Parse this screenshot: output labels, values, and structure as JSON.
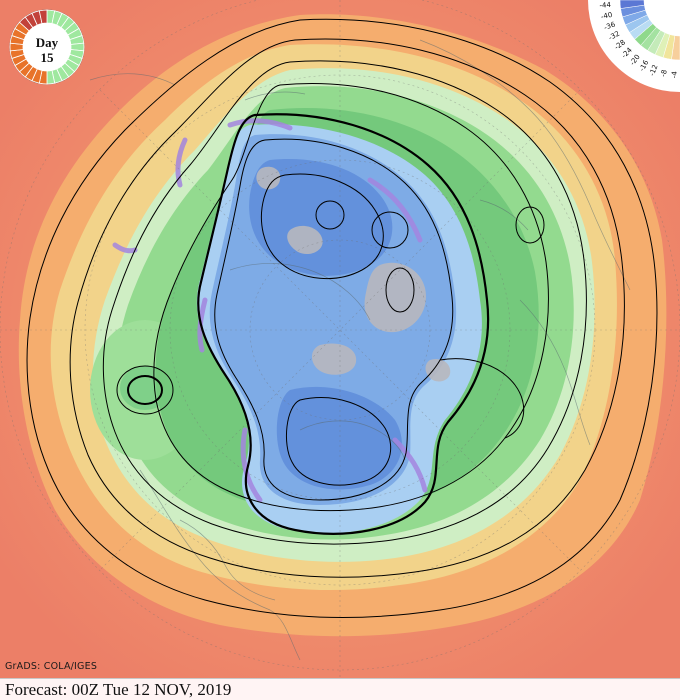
{
  "badge": {
    "label": "Day",
    "day": "15",
    "segments_total": 15,
    "segments_elapsed": 15,
    "color_elapsed": "#e8732a",
    "color_recent": "#c2423a",
    "color_future": "#9fe89f"
  },
  "scale": {
    "ticks": [
      "-4",
      "-8",
      "-12",
      "-16",
      "-20",
      "-24",
      "-28",
      "-32",
      "-36",
      "-40",
      "-44"
    ]
  },
  "credit": "GrADS: COLA/IGES",
  "footer": {
    "forecast": "Forecast: 00Z Tue 12 NOV, 2019"
  },
  "colors": {
    "warm_outer": "#f28c6e",
    "orange": "#f5b06a",
    "yellow": "#f3dc8a",
    "pale_green": "#cdeec0",
    "green": "#8fd98c",
    "mid_green": "#6cc777",
    "light_blue": "#9ec8f0",
    "blue": "#79a8e6",
    "deep_blue": "#5f8fd9",
    "purple": "#a98be0",
    "grey": "#b9b9bd",
    "contour": "#000000"
  }
}
